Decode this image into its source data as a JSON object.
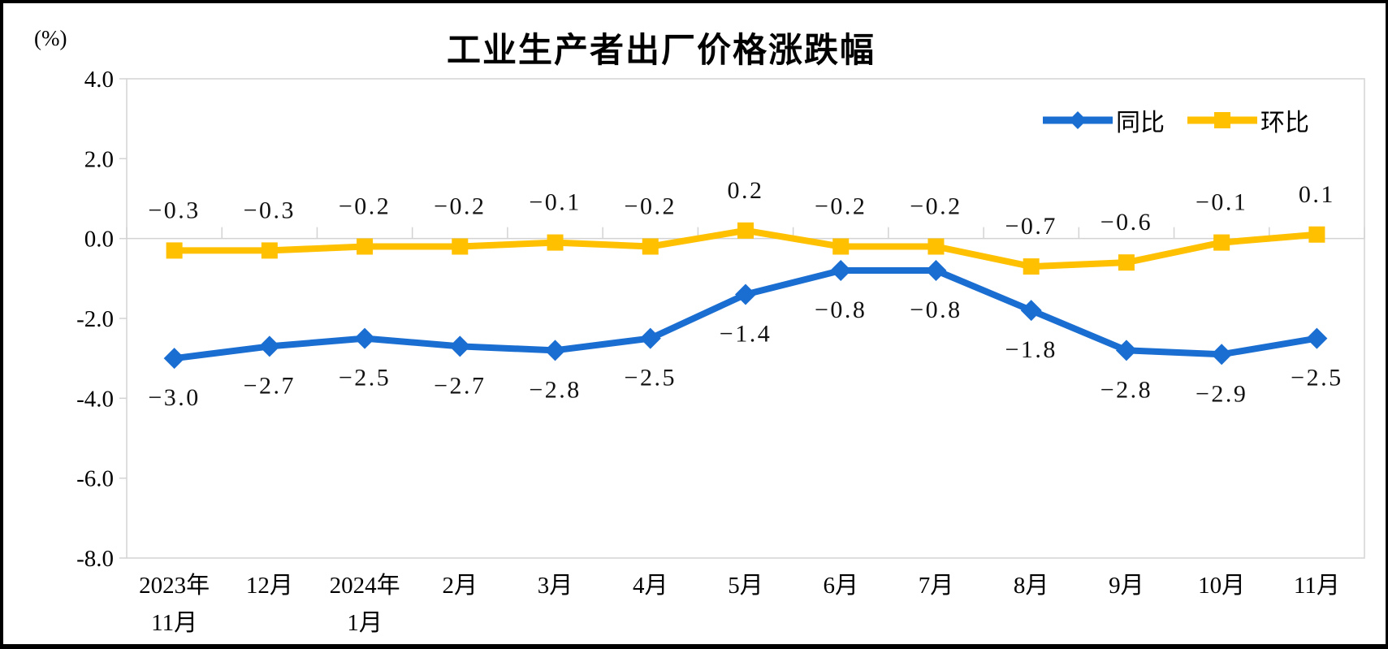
{
  "header": {
    "background": "#FFFFFF",
    "frame_color": "#000000"
  },
  "chart_data": {
    "type": "line",
    "title": "工业生产者出厂价格涨跌幅",
    "ylabel": "(%)",
    "xlabel": "",
    "ylim": [
      -8.0,
      4.0
    ],
    "ytick_interval": 2.0,
    "yticks": [
      "4.0",
      "2.0",
      "0.0",
      "-2.0",
      "-4.0",
      "-6.0",
      "-8.0"
    ],
    "categories": [
      "2023年\n11月",
      "12月",
      "2024年\n1月",
      "2月",
      "3月",
      "4月",
      "5月",
      "6月",
      "7月",
      "8月",
      "9月",
      "10月",
      "11月"
    ],
    "gridlines": "zero-line-only",
    "legend_position": "top-right",
    "axis_color": "#D3D3D3",
    "text_color": "#000000",
    "series": [
      {
        "name": "同比",
        "color": "#1B6ED1",
        "marker": "diamond",
        "label_position": "below",
        "values": [
          -3.0,
          -2.7,
          -2.5,
          -2.7,
          -2.8,
          -2.5,
          -1.4,
          -0.8,
          -0.8,
          -1.8,
          -2.8,
          -2.9,
          -2.5
        ]
      },
      {
        "name": "环比",
        "color": "#FFC000",
        "marker": "square",
        "label_position": "above",
        "values": [
          -0.3,
          -0.3,
          -0.2,
          -0.2,
          -0.1,
          -0.2,
          0.2,
          -0.2,
          -0.2,
          -0.7,
          -0.6,
          -0.1,
          0.1
        ]
      }
    ]
  }
}
